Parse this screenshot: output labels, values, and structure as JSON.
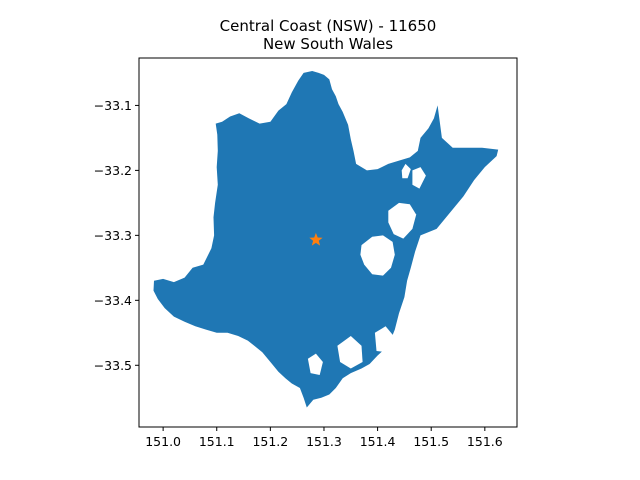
{
  "title": {
    "line1": "Central Coast (NSW) - 11650",
    "line2": "New South Wales"
  },
  "colors": {
    "region_fill": "#1f77b4",
    "marker": "#ff7f0e",
    "axes": "#000000",
    "background": "#ffffff"
  },
  "chart_data": {
    "type": "map",
    "region_name": "Central Coast (NSW)",
    "region_code": "11650",
    "state": "New South Wales",
    "xlim": [
      150.955,
      151.66
    ],
    "ylim": [
      -33.595,
      -33.027
    ],
    "x_ticks": [
      {
        "value": 151.0,
        "label": "151.0"
      },
      {
        "value": 151.1,
        "label": "151.1"
      },
      {
        "value": 151.2,
        "label": "151.2"
      },
      {
        "value": 151.3,
        "label": "151.3"
      },
      {
        "value": 151.4,
        "label": "151.4"
      },
      {
        "value": 151.5,
        "label": "151.5"
      },
      {
        "value": 151.6,
        "label": "151.6"
      }
    ],
    "y_ticks": [
      {
        "value": -33.1,
        "label": "−33.1"
      },
      {
        "value": -33.2,
        "label": "−33.2"
      },
      {
        "value": -33.3,
        "label": "−33.3"
      },
      {
        "value": -33.4,
        "label": "−33.4"
      },
      {
        "value": -33.5,
        "label": "−33.5"
      }
    ],
    "centroid": {
      "lon": 151.285,
      "lat": -33.307,
      "marker": "star"
    },
    "boundary": [
      [
        150.983,
        -33.37
      ],
      [
        151.0,
        -33.367
      ],
      [
        151.02,
        -33.372
      ],
      [
        151.04,
        -33.365
      ],
      [
        151.055,
        -33.35
      ],
      [
        151.075,
        -33.345
      ],
      [
        151.09,
        -33.32
      ],
      [
        151.095,
        -33.3
      ],
      [
        151.094,
        -33.272
      ],
      [
        151.097,
        -33.25
      ],
      [
        151.102,
        -33.222
      ],
      [
        151.1,
        -33.195
      ],
      [
        151.102,
        -33.17
      ],
      [
        151.101,
        -33.145
      ],
      [
        151.098,
        -33.128
      ],
      [
        151.11,
        -33.125
      ],
      [
        151.125,
        -33.117
      ],
      [
        151.142,
        -33.112
      ],
      [
        151.16,
        -33.12
      ],
      [
        151.18,
        -33.128
      ],
      [
        151.2,
        -33.125
      ],
      [
        151.215,
        -33.108
      ],
      [
        151.23,
        -33.098
      ],
      [
        151.24,
        -33.08
      ],
      [
        151.252,
        -33.062
      ],
      [
        151.262,
        -33.05
      ],
      [
        151.278,
        -33.047
      ],
      [
        151.29,
        -33.05
      ],
      [
        151.3,
        -33.053
      ],
      [
        151.31,
        -33.06
      ],
      [
        151.315,
        -33.075
      ],
      [
        151.322,
        -33.086
      ],
      [
        151.327,
        -33.098
      ],
      [
        151.335,
        -33.11
      ],
      [
        151.345,
        -33.13
      ],
      [
        151.35,
        -33.152
      ],
      [
        151.355,
        -33.17
      ],
      [
        151.36,
        -33.19
      ],
      [
        151.38,
        -33.2
      ],
      [
        151.4,
        -33.198
      ],
      [
        151.42,
        -33.19
      ],
      [
        151.44,
        -33.185
      ],
      [
        151.46,
        -33.18
      ],
      [
        151.475,
        -33.17
      ],
      [
        151.48,
        -33.15
      ],
      [
        151.495,
        -33.135
      ],
      [
        151.505,
        -33.12
      ],
      [
        151.512,
        -33.1
      ],
      [
        151.52,
        -33.15
      ],
      [
        151.54,
        -33.165
      ],
      [
        151.565,
        -33.165
      ],
      [
        151.595,
        -33.165
      ],
      [
        151.625,
        -33.168
      ],
      [
        151.622,
        -33.178
      ],
      [
        151.6,
        -33.195
      ],
      [
        151.58,
        -33.215
      ],
      [
        151.56,
        -33.24
      ],
      [
        151.535,
        -33.265
      ],
      [
        151.51,
        -33.29
      ],
      [
        151.48,
        -33.3
      ],
      [
        151.47,
        -33.325
      ],
      [
        151.462,
        -33.35
      ],
      [
        151.455,
        -33.37
      ],
      [
        151.45,
        -33.395
      ],
      [
        151.44,
        -33.42
      ],
      [
        151.432,
        -33.445
      ],
      [
        151.42,
        -33.47
      ],
      [
        151.4,
        -33.485
      ],
      [
        151.385,
        -33.498
      ],
      [
        151.37,
        -33.505
      ],
      [
        151.35,
        -33.512
      ],
      [
        151.335,
        -33.52
      ],
      [
        151.322,
        -33.535
      ],
      [
        151.31,
        -33.545
      ],
      [
        151.295,
        -33.55
      ],
      [
        151.28,
        -33.553
      ],
      [
        151.268,
        -33.565
      ],
      [
        151.262,
        -33.55
      ],
      [
        151.255,
        -33.535
      ],
      [
        151.24,
        -33.528
      ],
      [
        151.228,
        -33.52
      ],
      [
        151.215,
        -33.51
      ],
      [
        151.2,
        -33.495
      ],
      [
        151.185,
        -33.48
      ],
      [
        151.17,
        -33.47
      ],
      [
        151.158,
        -33.462
      ],
      [
        151.14,
        -33.455
      ],
      [
        151.12,
        -33.45
      ],
      [
        151.1,
        -33.45
      ],
      [
        151.08,
        -33.445
      ],
      [
        151.06,
        -33.44
      ],
      [
        151.04,
        -33.433
      ],
      [
        151.02,
        -33.425
      ],
      [
        151.003,
        -33.412
      ],
      [
        150.99,
        -33.398
      ],
      [
        150.982,
        -33.385
      ]
    ],
    "water_bodies": [
      [
        [
          151.37,
          -33.315
        ],
        [
          151.39,
          -33.302
        ],
        [
          151.41,
          -33.3
        ],
        [
          151.428,
          -33.31
        ],
        [
          151.432,
          -33.33
        ],
        [
          151.425,
          -33.35
        ],
        [
          151.41,
          -33.362
        ],
        [
          151.39,
          -33.36
        ],
        [
          151.375,
          -33.345
        ],
        [
          151.368,
          -33.33
        ]
      ],
      [
        [
          151.42,
          -33.262
        ],
        [
          151.44,
          -33.25
        ],
        [
          151.46,
          -33.252
        ],
        [
          151.472,
          -33.268
        ],
        [
          151.465,
          -33.29
        ],
        [
          151.448,
          -33.305
        ],
        [
          151.43,
          -33.298
        ],
        [
          151.42,
          -33.28
        ]
      ],
      [
        [
          151.465,
          -33.2
        ],
        [
          151.48,
          -33.195
        ],
        [
          151.49,
          -33.208
        ],
        [
          151.478,
          -33.228
        ],
        [
          151.465,
          -33.222
        ]
      ],
      [
        [
          151.445,
          -33.2
        ],
        [
          151.452,
          -33.19
        ],
        [
          151.462,
          -33.198
        ],
        [
          151.456,
          -33.212
        ],
        [
          151.446,
          -33.212
        ]
      ],
      [
        [
          151.395,
          -33.45
        ],
        [
          151.415,
          -33.44
        ],
        [
          151.43,
          -33.455
        ],
        [
          151.418,
          -33.48
        ],
        [
          151.398,
          -33.478
        ]
      ],
      [
        [
          151.325,
          -33.47
        ],
        [
          151.35,
          -33.455
        ],
        [
          151.37,
          -33.47
        ],
        [
          151.372,
          -33.495
        ],
        [
          151.35,
          -33.505
        ],
        [
          151.33,
          -33.495
        ]
      ],
      [
        [
          151.27,
          -33.49
        ],
        [
          151.285,
          -33.482
        ],
        [
          151.298,
          -33.495
        ],
        [
          151.292,
          -33.515
        ],
        [
          151.275,
          -33.512
        ]
      ]
    ]
  }
}
